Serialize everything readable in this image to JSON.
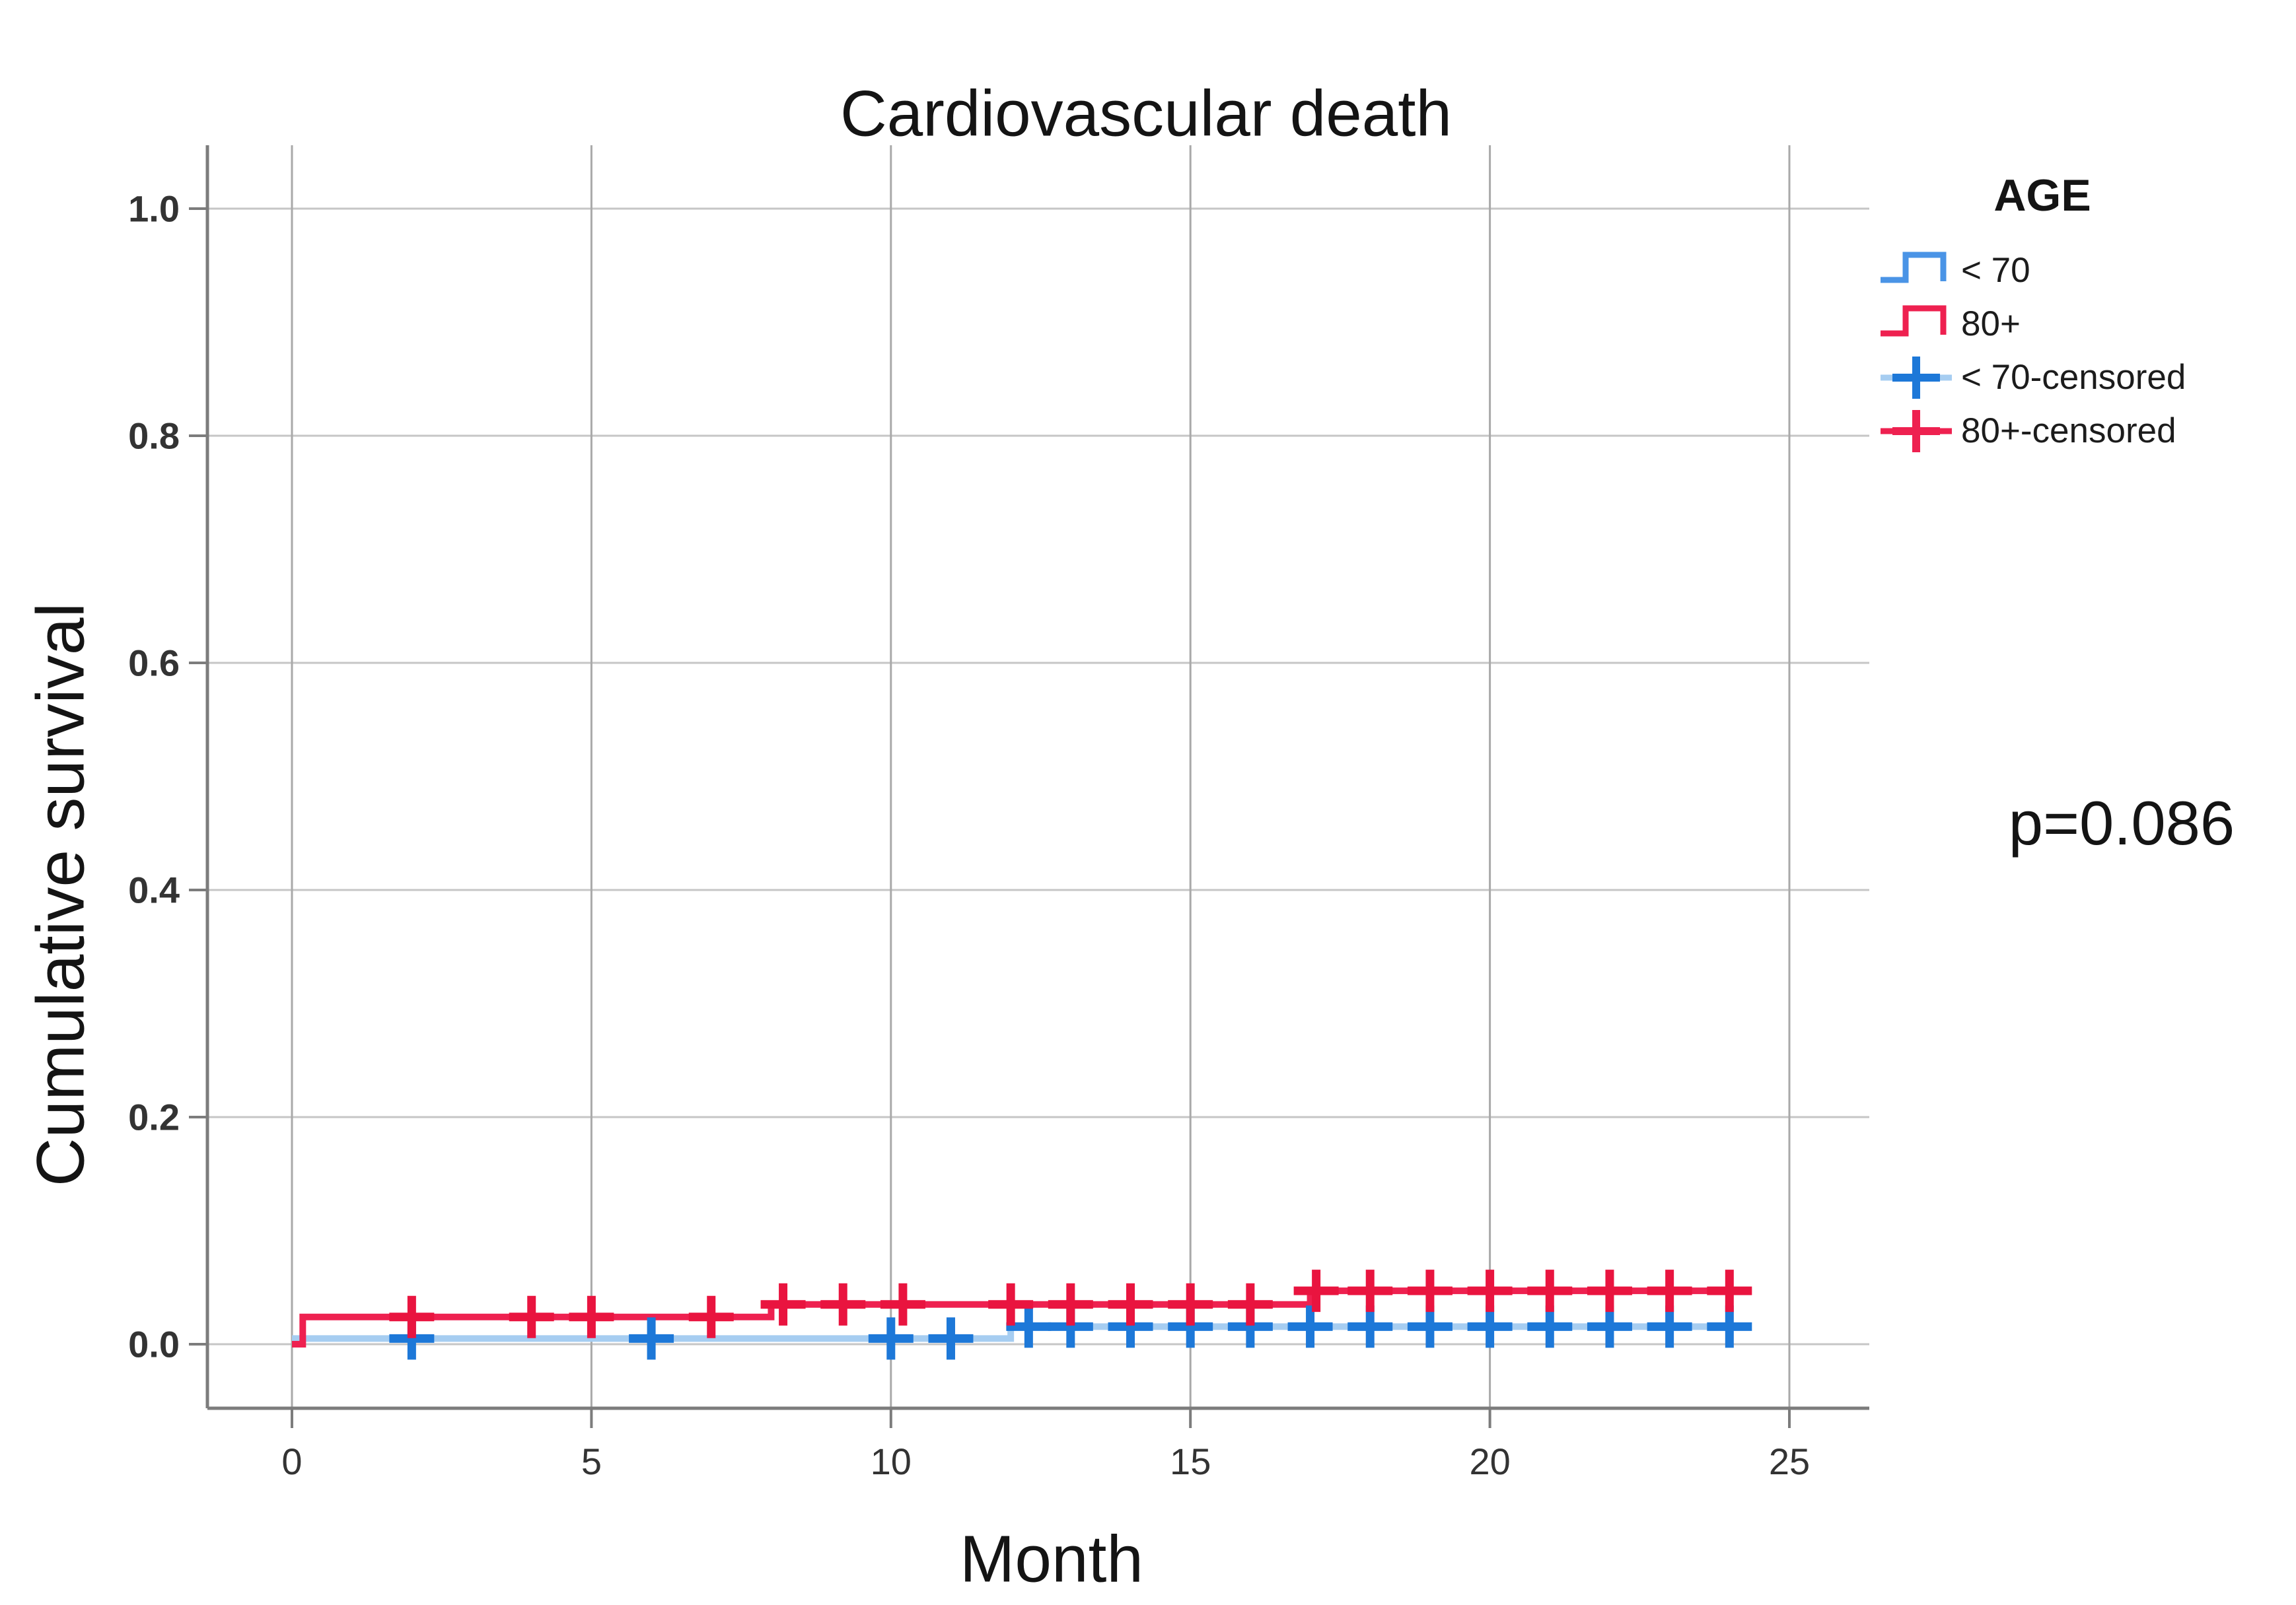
{
  "chart_data": {
    "type": "line",
    "subtype": "kaplan-meier-step",
    "title": "Cardiovascular death",
    "xlabel": "Month",
    "ylabel": "Cumulative survival",
    "annotation_p_value": "p=0.086",
    "legend_title": "AGE",
    "x_ticks": [
      0,
      5,
      10,
      15,
      20,
      25
    ],
    "y_ticks": [
      {
        "value": 0.0,
        "label": "0.0"
      },
      {
        "value": 0.2,
        "label": "0.2"
      },
      {
        "value": 0.4,
        "label": "0.4"
      },
      {
        "value": 0.6,
        "label": "0.6"
      },
      {
        "value": 0.8,
        "label": "0.8"
      },
      {
        "value": 1.0,
        "label": "1.0"
      }
    ],
    "xlim": [
      -1.4,
      26.3
    ],
    "ylim": [
      -0.056,
      1.056
    ],
    "grid": true,
    "legend_position": "top-right-outside",
    "series": [
      {
        "name": "< 70",
        "line_color": "#a6cdf1",
        "mark_color": "#1d78d8",
        "legend_color": "#4a94e6",
        "steps": [
          [
            0,
            0.005
          ],
          [
            12,
            0.0155
          ],
          [
            24.25,
            0.0155
          ]
        ],
        "censored_months": [
          2,
          6,
          10,
          11,
          12.3,
          13,
          14,
          15,
          16,
          17,
          18,
          19,
          20,
          21,
          22,
          23,
          24
        ]
      },
      {
        "name": "80+",
        "line_color": "#ee2150",
        "mark_color": "#e9143f",
        "legend_color": "#ee2150",
        "steps": [
          [
            0,
            0.0
          ],
          [
            0.18,
            0.024
          ],
          [
            8,
            0.035
          ],
          [
            17,
            0.047
          ],
          [
            24.35,
            0.047
          ]
        ],
        "censored_months": [
          2,
          4,
          5,
          7,
          8.2,
          9.2,
          10.2,
          12,
          13,
          14,
          15,
          16,
          17.1,
          18,
          19,
          20,
          21,
          22,
          23,
          24
        ]
      }
    ],
    "legend_entries": [
      {
        "label": "< 70",
        "type": "step",
        "line_color": "#4a94e6",
        "mark_color": "#4a94e6"
      },
      {
        "label": "80+",
        "type": "step",
        "line_color": "#ee2150",
        "mark_color": "#ee2150"
      },
      {
        "label": "< 70-censored",
        "type": "censored",
        "line_color": "#a6cdf1",
        "mark_color": "#1d78d8"
      },
      {
        "label": "80+-censored",
        "type": "censored",
        "line_color": "#ee2150",
        "mark_color": "#ee2150"
      }
    ]
  },
  "colors": {
    "h_grid": "#c6c6c6",
    "v_grid": "#a9a9a9",
    "axis": "#7c7c7c",
    "tick_text": "#333333",
    "text": "#141414",
    "background": "#ffffff"
  }
}
